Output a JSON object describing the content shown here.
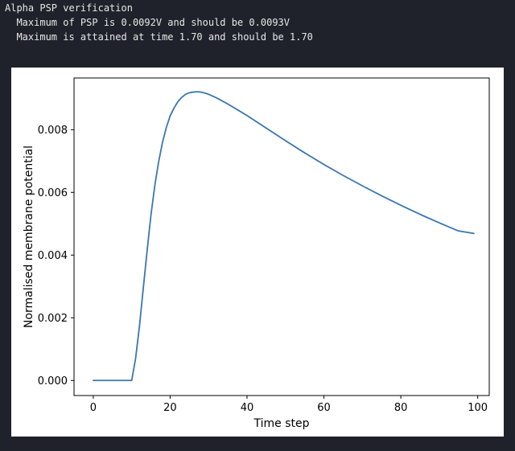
{
  "console": {
    "lines": [
      "Alpha PSP verification",
      "  Maximum of PSP is 0.0092V and should be 0.0093V",
      "  Maximum is attained at time 1.70 and should be 1.70"
    ]
  },
  "chart_data": {
    "type": "line",
    "title": "",
    "xlabel": "Time step",
    "ylabel": "Normalised membrane potential",
    "xlim": [
      -5,
      103
    ],
    "ylim": [
      -0.00048,
      0.00965
    ],
    "xticks": [
      0,
      20,
      40,
      60,
      80,
      100
    ],
    "xtick_labels": [
      "0",
      "20",
      "40",
      "60",
      "80",
      "100"
    ],
    "yticks": [
      0.0,
      0.002,
      0.004,
      0.006,
      0.008
    ],
    "ytick_labels": [
      "0.000",
      "0.002",
      "0.004",
      "0.006",
      "0.008"
    ],
    "grid": false,
    "legend": "none",
    "series": [
      {
        "color": "#3a76b1",
        "x": [
          0,
          5,
          10,
          11,
          12,
          13,
          14,
          15,
          16,
          17,
          18,
          19,
          20,
          21,
          22,
          23,
          24,
          25,
          26,
          27,
          28,
          29,
          30,
          32,
          35,
          38,
          40,
          45,
          50,
          55,
          60,
          65,
          70,
          75,
          80,
          85,
          90,
          95,
          99
        ],
        "y": [
          0,
          0,
          0,
          0.00069,
          0.00171,
          0.00293,
          0.00413,
          0.00527,
          0.00621,
          0.00697,
          0.00759,
          0.00807,
          0.00844,
          0.00869,
          0.00889,
          0.00903,
          0.00913,
          0.00918,
          0.0092,
          0.00921,
          0.0092,
          0.00917,
          0.00913,
          0.00902,
          0.00882,
          0.0086,
          0.00845,
          0.00805,
          0.00765,
          0.00726,
          0.00689,
          0.00654,
          0.00621,
          0.00589,
          0.00559,
          0.0053,
          0.00503,
          0.00477,
          0.00469
        ]
      }
    ]
  }
}
